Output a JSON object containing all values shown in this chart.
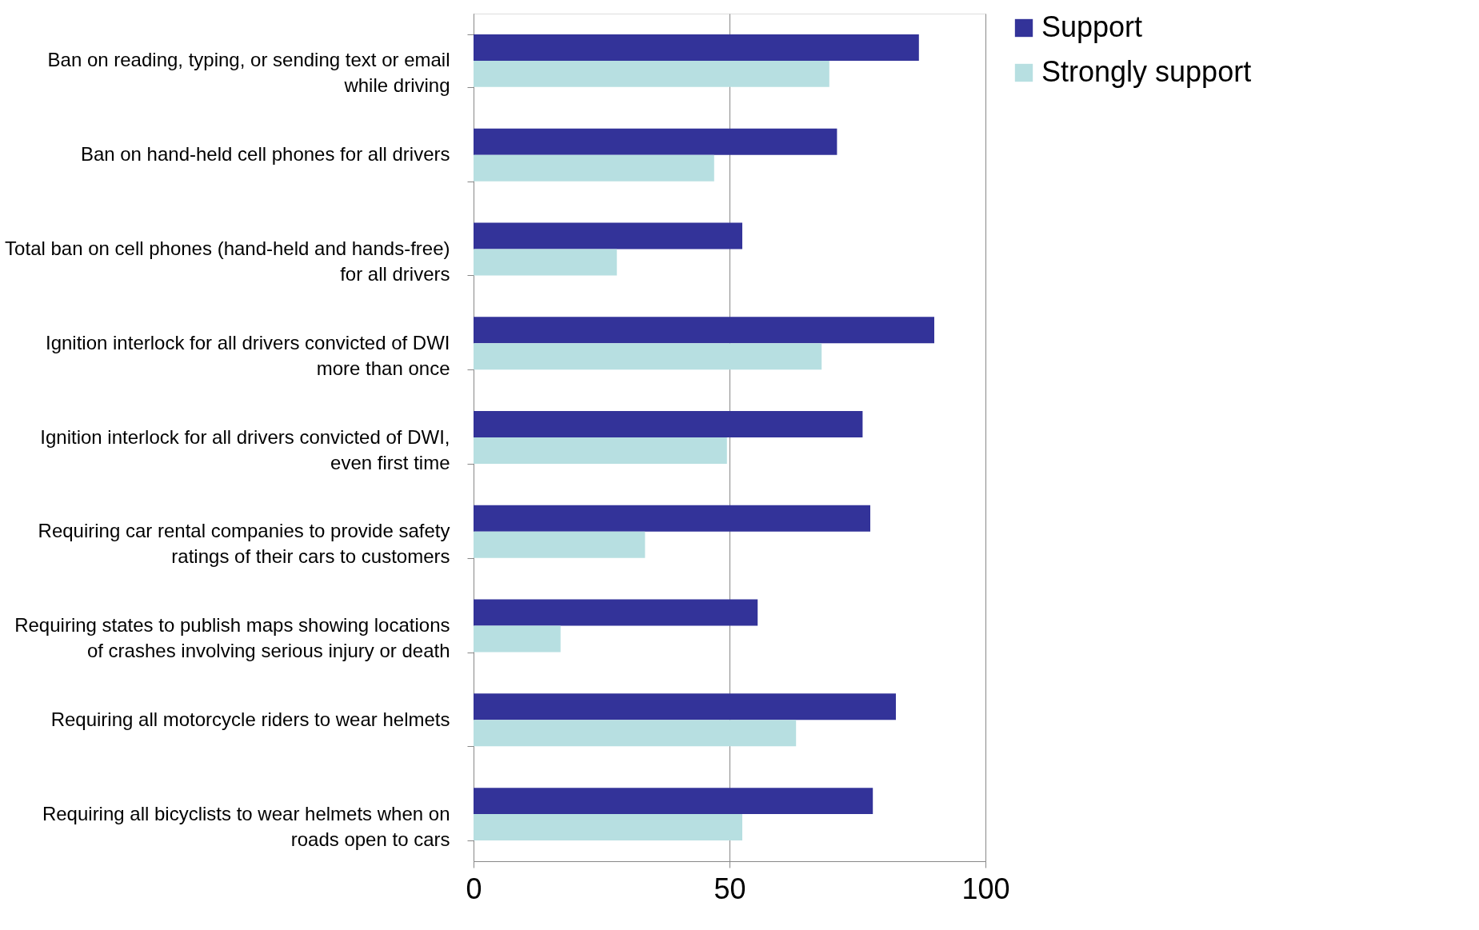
{
  "chart_data": {
    "type": "bar",
    "orientation": "horizontal",
    "categories": [
      "Ban on reading, typing, or sending text or email while driving",
      "Ban on hand-held cell phones for all drivers",
      "Total ban on cell phones (hand-held and hands-free) for all drivers",
      "Ignition interlock for all drivers convicted of DWI more than once",
      "Ignition interlock for all drivers convicted of DWI, even first time",
      "Requiring car rental companies to provide safety ratings of their cars to customers",
      "Requiring states to publish maps showing locations of crashes involving serious injury or death",
      "Requiring all motorcycle riders to wear helmets",
      "Requiring all bicyclists to wear helmets when on roads open to cars"
    ],
    "series": [
      {
        "name": "Support",
        "color": "#333399",
        "values": [
          87,
          71,
          52.5,
          90,
          76,
          77.5,
          55.5,
          82.5,
          78
        ]
      },
      {
        "name": "Strongly support",
        "color": "#b7dfe1",
        "values": [
          69.5,
          47,
          28,
          68,
          49.5,
          33.5,
          17,
          63,
          52.5
        ]
      }
    ],
    "xlim": [
      0,
      100
    ],
    "xticks": [
      0,
      50,
      100
    ],
    "grid": "x",
    "legend": "right"
  }
}
